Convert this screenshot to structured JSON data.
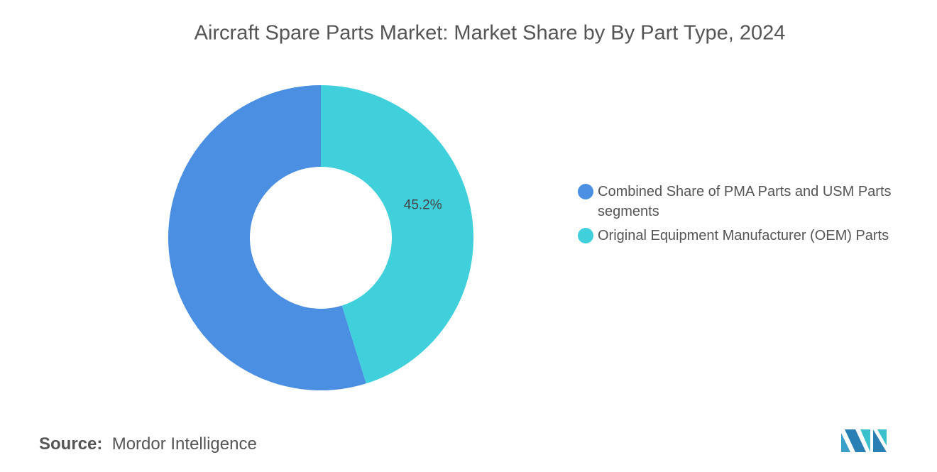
{
  "chart_data": {
    "type": "donut",
    "title": "Aircraft Spare Parts Market: Market Share by By Part Type, 2024",
    "categories": [
      "Combined Share of PMA Parts and USM Parts segments",
      "Original Equipment Manufacturer (OEM) Parts"
    ],
    "values": [
      54.8,
      45.2
    ],
    "value_labels": [
      null,
      "45.2%"
    ],
    "colors": [
      "#4a8fe2",
      "#40d0dc"
    ],
    "legend": "right"
  },
  "footer": {
    "source_label": "Source:",
    "source": "Mordor Intelligence"
  }
}
